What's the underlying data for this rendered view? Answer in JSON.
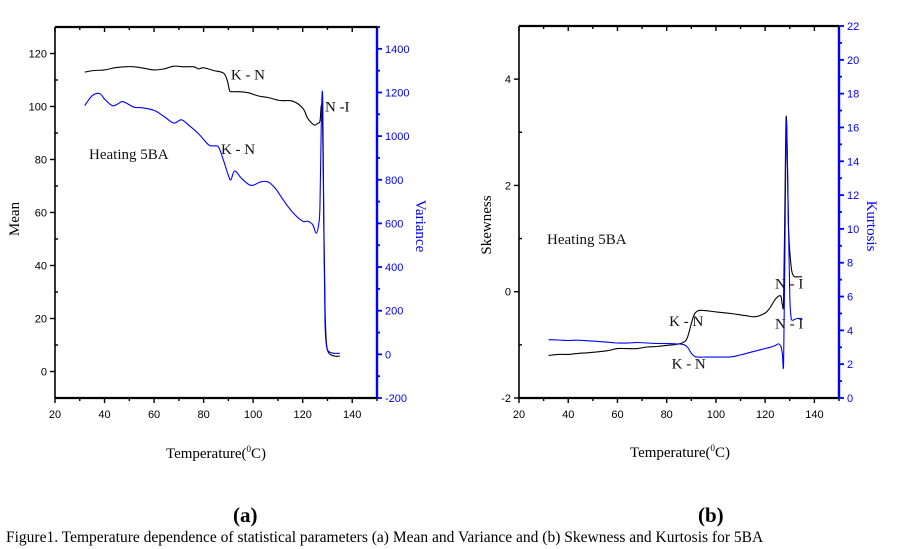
{
  "figure": {
    "caption": "Figure1.  Temperature dependence of statistical parameters (a) Mean and Variance  and (b) Skewness and Kurtosis for 5BA",
    "panel_a_label": "(a)",
    "panel_b_label": "(b)"
  },
  "colors": {
    "primary": "#000000",
    "secondary": "#0000ff"
  },
  "chart_data": [
    {
      "type": "line",
      "id": "a",
      "title": "",
      "annotation_text": "Heating 5BA",
      "xlabel": "Temperature(0C)",
      "xlabel_main": "Temperature(",
      "xlabel_sup": "0",
      "xlabel_end": "C)",
      "ylabel": "Mean",
      "y2label": "Variance",
      "xlim": [
        20,
        150
      ],
      "ylim": [
        -10,
        130
      ],
      "y2lim": [
        -200,
        1500
      ],
      "xticks": [
        20,
        40,
        60,
        80,
        100,
        120,
        140
      ],
      "yticks": [
        0,
        20,
        40,
        60,
        80,
        100,
        120
      ],
      "y2ticks": [
        -200,
        0,
        200,
        400,
        600,
        800,
        1000,
        1200,
        1400
      ],
      "grid": false,
      "annotations": [
        {
          "text": "K - N",
          "x": 91,
          "y": 112,
          "axis": "y"
        },
        {
          "text": "N -I",
          "x": 129,
          "y": 100,
          "axis": "y"
        },
        {
          "text": "K - N",
          "x": 87,
          "y": 84,
          "axis": "y"
        }
      ],
      "series": [
        {
          "name": "Mean",
          "axis": "y",
          "color": "#000000",
          "x": [
            32,
            36,
            40,
            44,
            48,
            52,
            56,
            60,
            64,
            68,
            72,
            76,
            78,
            80,
            84,
            88,
            89.5,
            90.5,
            91.5,
            94,
            98,
            102,
            106,
            110,
            112,
            116,
            120,
            122,
            124,
            125,
            126,
            127,
            127.5,
            128,
            128.5,
            129,
            129.5,
            130,
            131,
            133,
            135
          ],
          "values": [
            113,
            113.6,
            113.8,
            114.6,
            115,
            115,
            114.4,
            113.8,
            114.2,
            115.2,
            115,
            115,
            114.2,
            114.6,
            113.6,
            112.6,
            110,
            106,
            105.6,
            105.6,
            105.2,
            104,
            103.4,
            102.4,
            102.2,
            102,
            99.4,
            95.6,
            93.4,
            93,
            93.6,
            94.6,
            100.4,
            96,
            60,
            25,
            12,
            8,
            6.5,
            5.8,
            5.8
          ]
        },
        {
          "name": "Variance",
          "axis": "y2",
          "color": "#0000ff",
          "x": [
            32,
            35,
            38,
            40,
            43,
            45,
            47,
            49,
            52,
            55,
            60,
            64,
            68,
            71,
            74,
            78,
            82,
            84,
            86,
            88,
            90,
            91,
            92.5,
            95,
            98,
            100,
            103,
            106,
            109,
            112,
            116,
            120,
            122,
            124,
            125.5,
            126.5,
            127,
            127.5,
            128,
            128.3,
            128.6,
            129,
            129.5,
            130,
            131,
            132.5,
            135
          ],
          "values": [
            1140,
            1185,
            1195,
            1170,
            1140,
            1145,
            1158,
            1150,
            1132,
            1130,
            1118,
            1090,
            1060,
            1075,
            1050,
            1010,
            960,
            955,
            950,
            890,
            820,
            800,
            840,
            810,
            780,
            775,
            790,
            790,
            760,
            710,
            650,
            610,
            610,
            595,
            555,
            600,
            690,
            1060,
            1200,
            900,
            500,
            150,
            50,
            20,
            10,
            5,
            5
          ]
        }
      ]
    },
    {
      "type": "line",
      "id": "b",
      "title": "",
      "annotation_text": "Heating 5BA",
      "xlabel": "Temperature(0C)",
      "xlabel_main": "Temperature(",
      "xlabel_sup": "0",
      "xlabel_end": "C)",
      "ylabel": "Skewness",
      "y2label": "Kurtosis",
      "xlim": [
        20,
        150
      ],
      "ylim": [
        -2,
        5
      ],
      "y2lim": [
        0,
        22
      ],
      "xticks": [
        20,
        40,
        60,
        80,
        100,
        120,
        140
      ],
      "yticks": [
        -2,
        0,
        2,
        4
      ],
      "y2ticks": [
        0,
        2,
        4,
        6,
        8,
        10,
        12,
        14,
        16,
        18,
        20,
        22
      ],
      "grid": false,
      "annotations": [
        {
          "text": "N - I",
          "x": 124,
          "y": 0.15,
          "axis": "y"
        },
        {
          "text": "K - N",
          "x": 81,
          "y": -0.55,
          "axis": "y"
        },
        {
          "text": "N - I",
          "x": 124,
          "y": -0.6,
          "axis": "y"
        },
        {
          "text": "K - N",
          "x": 82,
          "y": -1.35,
          "axis": "y"
        }
      ],
      "series": [
        {
          "name": "Skewness",
          "axis": "y",
          "color": "#000000",
          "x": [
            32,
            36,
            40,
            44,
            48,
            52,
            56,
            60,
            64,
            68,
            72,
            76,
            80,
            84,
            87,
            88.5,
            90,
            91,
            92,
            94,
            100,
            106,
            112,
            116,
            120,
            122,
            124,
            125.5,
            126.5,
            127,
            127.5,
            128,
            128.5,
            129,
            129.5,
            130.5,
            131.5,
            133,
            135
          ],
          "values": [
            -1.2,
            -1.18,
            -1.18,
            -1.16,
            -1.15,
            -1.13,
            -1.11,
            -1.07,
            -1.07,
            -1.07,
            -1.04,
            -1.03,
            -1.01,
            -0.99,
            -0.95,
            -0.85,
            -0.6,
            -0.45,
            -0.38,
            -0.35,
            -0.38,
            -0.41,
            -0.45,
            -0.47,
            -0.4,
            -0.3,
            -0.15,
            -0.08,
            -0.1,
            -0.25,
            -0.15,
            1.5,
            3.27,
            2.5,
            1.2,
            0.5,
            0.3,
            0.28,
            0.28
          ]
        },
        {
          "name": "Kurtosis",
          "axis": "y2",
          "color": "#0000ff",
          "x": [
            32,
            36,
            40,
            44,
            48,
            52,
            56,
            60,
            64,
            68,
            72,
            76,
            80,
            84,
            87,
            88.5,
            90,
            91.5,
            93,
            96,
            100,
            106,
            110,
            114,
            118,
            122,
            124,
            125.5,
            126.5,
            127,
            127.5,
            128,
            128.5,
            129,
            129.5,
            130,
            130.5,
            131,
            132,
            133,
            135
          ],
          "values": [
            3.45,
            3.43,
            3.4,
            3.42,
            3.38,
            3.35,
            3.3,
            3.25,
            3.25,
            3.28,
            3.25,
            3.23,
            3.22,
            3.2,
            3.15,
            3.0,
            2.65,
            2.45,
            2.42,
            2.42,
            2.42,
            2.43,
            2.55,
            2.7,
            2.85,
            3.0,
            3.1,
            3.2,
            3.0,
            2.6,
            2.1,
            8.0,
            16.0,
            14.5,
            10.0,
            6.0,
            4.8,
            4.6,
            4.65,
            4.7,
            4.7
          ]
        }
      ]
    }
  ]
}
